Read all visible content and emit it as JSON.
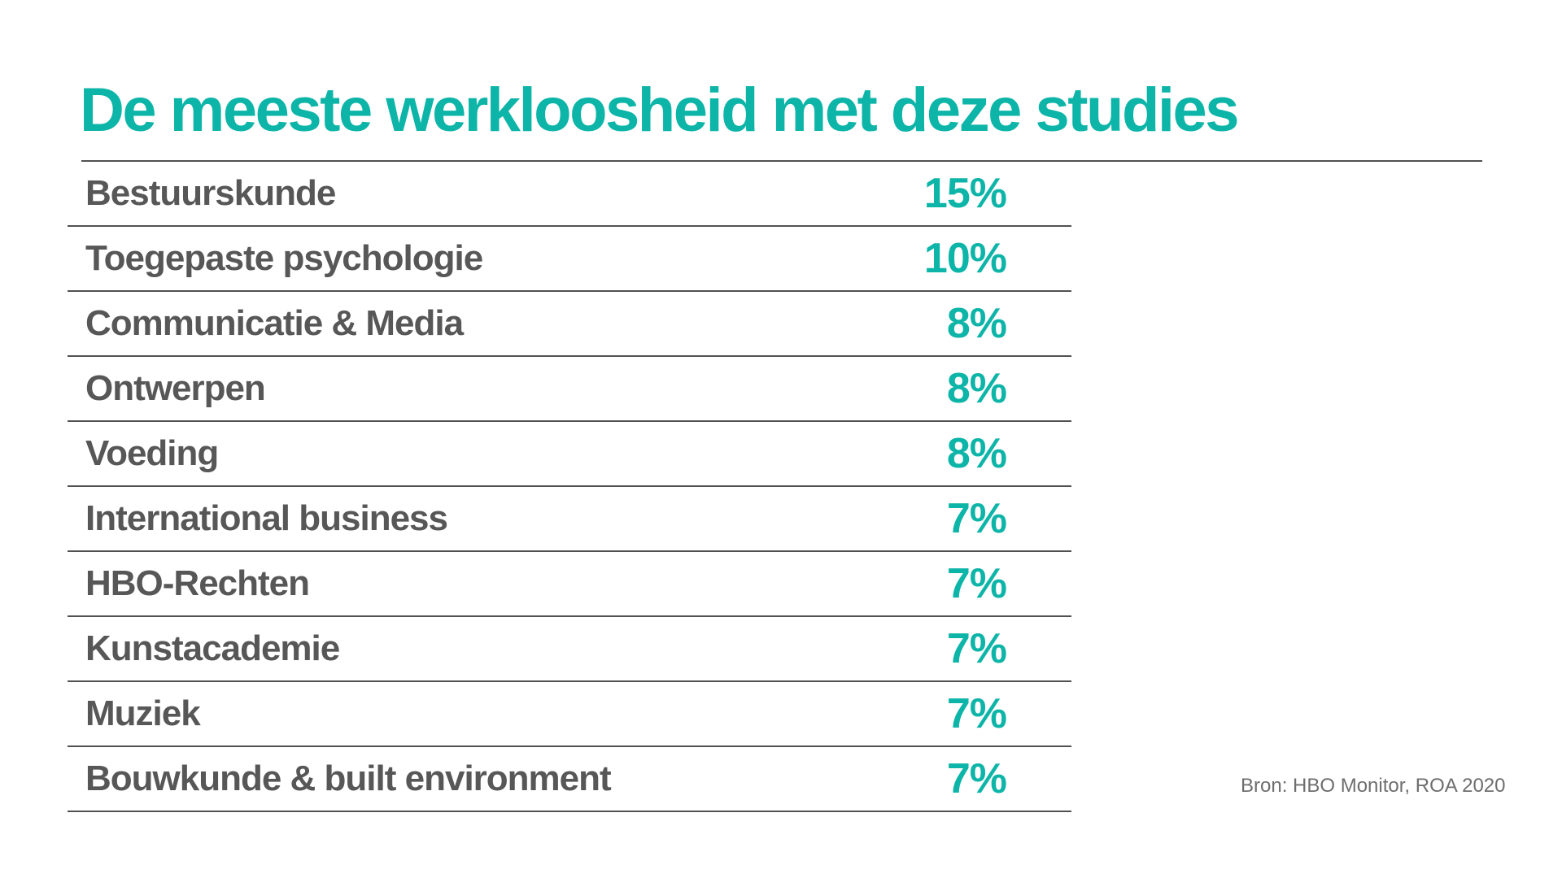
{
  "colors": {
    "accent": "#0db5a8",
    "label": "#575757",
    "divider": "#515151",
    "source_text": "#6e6e6e",
    "background": "#ffffff"
  },
  "header": {
    "title": "De meeste werkloosheid met deze studies"
  },
  "table": {
    "rows": [
      {
        "label": "Bestuurskunde",
        "value": "15%"
      },
      {
        "label": "Toegepaste psychologie",
        "value": "10%"
      },
      {
        "label": "Communicatie & Media",
        "value": "8%"
      },
      {
        "label": "Ontwerpen",
        "value": "8%"
      },
      {
        "label": "Voeding",
        "value": "8%"
      },
      {
        "label": "International business",
        "value": "7%"
      },
      {
        "label": "HBO-Rechten",
        "value": "7%"
      },
      {
        "label": "Kunstacademie",
        "value": "7%"
      },
      {
        "label": "Muziek",
        "value": "7%"
      },
      {
        "label": "Bouwkunde & built environment",
        "value": "7%"
      }
    ]
  },
  "footer": {
    "source": "Bron: HBO Monitor, ROA 2020"
  },
  "chart_data": {
    "type": "table",
    "title": "De meeste werkloosheid met deze studies",
    "categories": [
      "Bestuurskunde",
      "Toegepaste psychologie",
      "Communicatie & Media",
      "Ontwerpen",
      "Voeding",
      "International business",
      "HBO-Rechten",
      "Kunstacademie",
      "Muziek",
      "Bouwkunde & built environment"
    ],
    "values": [
      15,
      10,
      8,
      8,
      8,
      7,
      7,
      7,
      7,
      7
    ],
    "unit": "%",
    "value_labels": [
      "15%",
      "10%",
      "8%",
      "8%",
      "8%",
      "7%",
      "7%",
      "7%",
      "7%",
      "7%"
    ],
    "source": "Bron: HBO Monitor, ROA 2020",
    "legend": "none",
    "grid": "row-dividers-only"
  }
}
